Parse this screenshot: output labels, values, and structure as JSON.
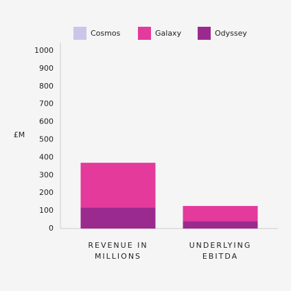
{
  "chart_data": {
    "type": "stacked-bar",
    "y_label": "£M",
    "categories": [
      "REVENUE IN MILLIONS",
      "UNDERLYING EBITDA"
    ],
    "series": [
      {
        "name": "Cosmos",
        "color": "#cdc4ea",
        "values": [
          0,
          0
        ]
      },
      {
        "name": "Galaxy",
        "color": "#e33a9c",
        "values": [
          252,
          85
        ]
      },
      {
        "name": "Odyssey",
        "color": "#9b2a8f",
        "values": [
          118,
          42
        ]
      }
    ],
    "ylim": [
      0,
      1000
    ],
    "yticks": [
      0,
      100,
      200,
      300,
      400,
      500,
      600,
      700,
      800,
      900,
      1000
    ],
    "legend": "top"
  }
}
